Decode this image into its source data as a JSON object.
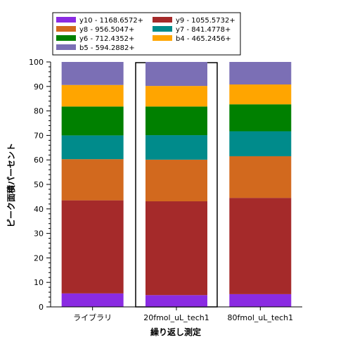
{
  "chart_data": {
    "type": "bar",
    "stacked": true,
    "title": "",
    "xlabel": "繰り返し測定",
    "ylabel": "ピーク面積パーセント",
    "ylim": [
      0,
      100
    ],
    "yticks": [
      0,
      10,
      20,
      30,
      40,
      50,
      60,
      70,
      80,
      90,
      100
    ],
    "categories": [
      "ライブラリ",
      "20fmol_uL_tech1",
      "80fmol_uL_tech1"
    ],
    "highlighted_category": "20fmol_uL_tech1",
    "legend_position": "top",
    "series": [
      {
        "name": "y10 - 1168.6572+",
        "color": "#8a2be2",
        "values": [
          5.5,
          4.8,
          5.2
        ]
      },
      {
        "name": "y9 - 1055.5732+",
        "color": "#a52a2a",
        "values": [
          38.0,
          38.3,
          39.3
        ]
      },
      {
        "name": "y8 - 956.5047+",
        "color": "#d2691e",
        "values": [
          16.8,
          17.0,
          17.0
        ]
      },
      {
        "name": "y7 - 841.4778+",
        "color": "#008b8b",
        "values": [
          9.7,
          10.0,
          10.2
        ]
      },
      {
        "name": "y6 - 712.4352+",
        "color": "#008000",
        "values": [
          11.8,
          11.7,
          11.0
        ]
      },
      {
        "name": "b4 - 465.2456+",
        "color": "#ffa500",
        "values": [
          8.8,
          8.4,
          8.1
        ]
      },
      {
        "name": "b5 - 594.2882+",
        "color": "#7b6fb5",
        "values": [
          9.4,
          9.8,
          9.2
        ]
      }
    ]
  }
}
